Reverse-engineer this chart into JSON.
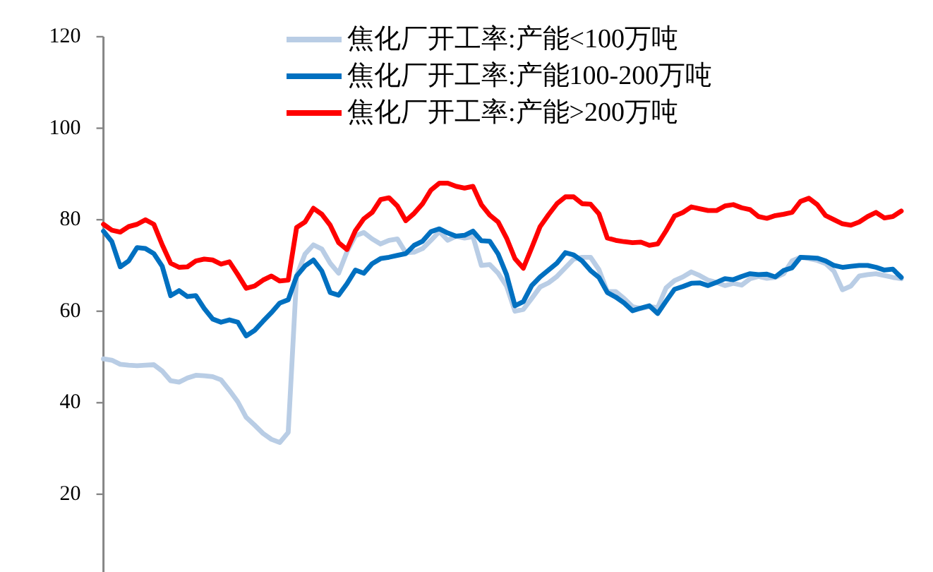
{
  "chart_data": {
    "type": "line",
    "legend": "top",
    "tick_labels": "y",
    "ylim": [
      3,
      120
    ],
    "yticks": [
      20,
      40,
      60,
      80,
      100,
      120
    ],
    "categories": [
      null,
      null,
      null,
      null,
      null,
      null,
      null,
      null,
      null,
      null,
      null,
      null,
      null,
      null,
      null,
      null,
      null,
      null,
      null,
      null,
      null,
      null,
      null,
      null,
      null,
      null,
      null,
      null,
      null,
      null,
      null,
      null,
      null,
      null,
      null,
      null,
      null,
      null,
      null,
      null,
      null,
      null,
      null,
      null,
      null,
      null,
      null,
      null,
      null,
      null,
      null,
      null,
      null,
      null,
      null,
      null,
      null,
      null,
      null,
      null,
      null,
      null,
      null,
      null,
      null,
      null,
      null,
      null,
      null,
      null,
      null,
      null,
      null,
      null,
      null,
      null,
      null,
      null,
      null,
      null,
      null,
      null,
      null,
      null,
      null,
      null,
      null,
      null,
      null,
      null,
      null,
      null,
      null,
      null,
      null,
      null
    ],
    "series": [
      {
        "name": "焦化厂开工率:产能<100万吨",
        "color": "#b9cde5",
        "values": [
          49.6,
          49.3,
          48.4,
          48.2,
          48.1,
          48.2,
          48.3,
          46.9,
          44.8,
          44.5,
          45.4,
          46.0,
          45.9,
          45.7,
          45.0,
          42.7,
          40.2,
          36.8,
          35.1,
          33.3,
          32.0,
          31.3,
          33.5,
          67.7,
          72.5,
          74.5,
          73.6,
          70.5,
          68.3,
          73.0,
          76.5,
          77.2,
          75.8,
          74.7,
          75.5,
          75.8,
          72.8,
          72.9,
          73.7,
          75.5,
          77.4,
          75.5,
          76.4,
          76.0,
          76.3,
          70.0,
          70.2,
          68.3,
          65.5,
          60.0,
          60.4,
          62.8,
          65.3,
          66.2,
          67.6,
          69.5,
          71.4,
          71.8,
          71.8,
          69.1,
          64.3,
          64.3,
          62.8,
          61.0,
          60.6,
          61.0,
          60.8,
          65.1,
          66.7,
          67.5,
          68.6,
          67.8,
          66.8,
          66.3,
          65.6,
          66.1,
          65.7,
          67.1,
          67.6,
          67.2,
          67.4,
          68.2,
          71.0,
          71.8,
          71.5,
          71.1,
          70.4,
          68.7,
          64.7,
          65.5,
          67.7,
          68.0,
          68.2,
          67.8,
          67.4,
          67.1
        ]
      },
      {
        "name": "焦化厂开工率:产能100-200万吨",
        "color": "#0070c0",
        "values": [
          77.5,
          75.2,
          69.7,
          71.0,
          73.9,
          73.7,
          72.6,
          69.8,
          63.4,
          64.5,
          63.2,
          63.4,
          60.6,
          58.3,
          57.6,
          58.1,
          57.6,
          54.6,
          55.8,
          57.8,
          59.7,
          61.8,
          62.5,
          67.7,
          69.9,
          71.2,
          68.8,
          64.1,
          63.5,
          66.0,
          69.0,
          68.3,
          70.4,
          71.5,
          71.8,
          72.2,
          72.6,
          74.4,
          75.3,
          77.4,
          78.0,
          77.1,
          76.4,
          76.6,
          77.5,
          75.4,
          75.3,
          72.5,
          68.0,
          61.2,
          62.1,
          65.6,
          67.5,
          69.0,
          70.5,
          72.8,
          72.3,
          71.0,
          68.9,
          67.4,
          64.1,
          63.1,
          61.8,
          60.1,
          60.7,
          61.2,
          59.5,
          62.2,
          64.8,
          65.4,
          66.1,
          66.2,
          65.6,
          66.3,
          67.1,
          66.9,
          67.6,
          68.2,
          68.0,
          68.1,
          67.5,
          68.9,
          69.5,
          71.8,
          71.7,
          71.6,
          71.0,
          70.0,
          69.6,
          69.8,
          70.0,
          70.0,
          69.6,
          69.0,
          69.2,
          67.4
        ]
      },
      {
        "name": "焦化厂开工率:产能>200万吨",
        "color": "#ff0000",
        "values": [
          79.0,
          77.7,
          77.3,
          78.5,
          79.0,
          80.0,
          79.0,
          74.5,
          70.5,
          69.6,
          69.7,
          71.0,
          71.4,
          71.2,
          70.3,
          70.8,
          68.0,
          65.0,
          65.5,
          66.8,
          67.7,
          66.6,
          66.8,
          78.3,
          79.5,
          82.5,
          81.2,
          78.8,
          75.0,
          73.5,
          77.6,
          80.2,
          81.6,
          84.4,
          84.8,
          83.0,
          79.8,
          81.4,
          83.5,
          86.5,
          88.0,
          88.0,
          87.3,
          86.9,
          87.3,
          83.3,
          81.0,
          79.5,
          76.0,
          71.5,
          69.4,
          73.9,
          78.5,
          81.1,
          83.5,
          85.0,
          85.0,
          83.5,
          83.4,
          81.3,
          76.0,
          75.5,
          75.2,
          75.0,
          75.1,
          74.4,
          74.7,
          77.6,
          80.8,
          81.6,
          82.8,
          82.4,
          82.0,
          82.0,
          83.0,
          83.3,
          82.6,
          82.2,
          80.7,
          80.3,
          80.9,
          81.2,
          81.6,
          84.0,
          84.7,
          83.3,
          80.9,
          80.0,
          79.1,
          78.8,
          79.5,
          80.7,
          81.6,
          80.4,
          80.7,
          81.9
        ]
      }
    ]
  }
}
